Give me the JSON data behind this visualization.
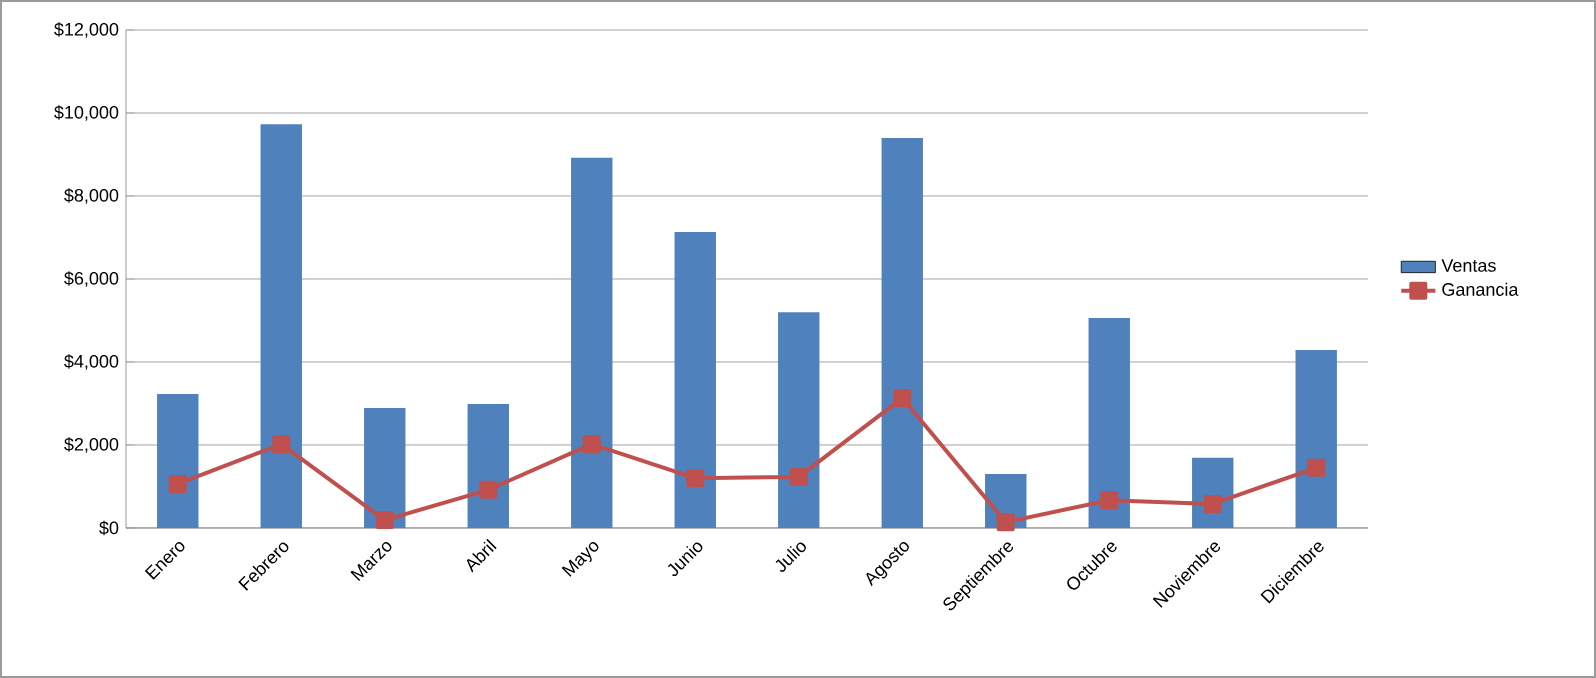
{
  "chart_data": {
    "type": "bar",
    "categories": [
      "Enero",
      "Febrero",
      "Marzo",
      "Abril",
      "Mayo",
      "Junio",
      "Julio",
      "Agosto",
      "Septiembre",
      "Octubre",
      "Noviembre",
      "Diciembre"
    ],
    "series": [
      {
        "name": "Ventas",
        "color": "#4f81bd",
        "values": [
          3230,
          9730,
          2890,
          2990,
          8920,
          7130,
          5200,
          9400,
          1300,
          5060,
          1690,
          4290
        ]
      },
      {
        "name": "Ganancia",
        "type": "line",
        "color": "#c0504d",
        "marker": "square",
        "values": [
          1060,
          2020,
          190,
          920,
          2020,
          1200,
          1230,
          3130,
          140,
          670,
          580,
          1450
        ]
      }
    ],
    "ylim": [
      0,
      12000
    ],
    "yticks": [
      {
        "value": 0,
        "label": "$0"
      },
      {
        "value": 2000,
        "label": "$2,000"
      },
      {
        "value": 4000,
        "label": "$4,000"
      },
      {
        "value": 6000,
        "label": "$6,000"
      },
      {
        "value": 8000,
        "label": "$8,000"
      },
      {
        "value": 10000,
        "label": "$10,000"
      },
      {
        "value": 12000,
        "label": "$12,000"
      }
    ],
    "grid": "y",
    "legend": "right"
  }
}
